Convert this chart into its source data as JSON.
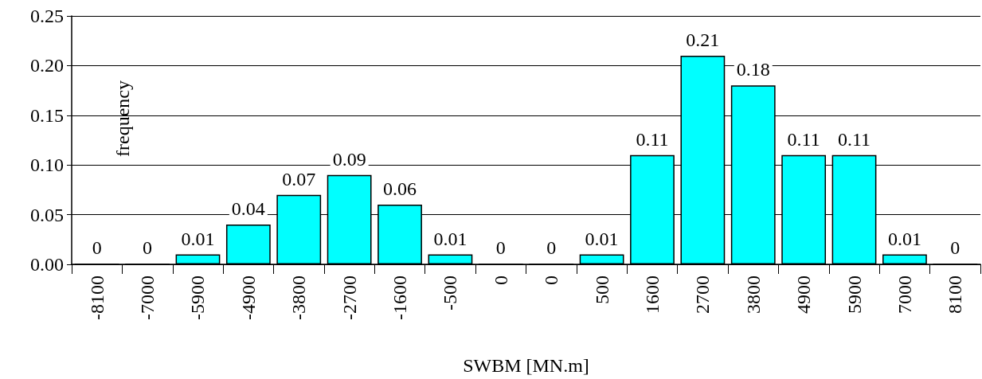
{
  "chart_data": {
    "type": "bar",
    "xlabel": "SWBM [MN.m]",
    "ylabel": "frequency",
    "categories": [
      "-8100",
      "-7000",
      "-5900",
      "-4900",
      "-3800",
      "-2700",
      "-1600",
      "-500",
      "0",
      "0",
      "500",
      "1600",
      "2700",
      "3800",
      "4900",
      "5900",
      "7000",
      "8100"
    ],
    "values": [
      0,
      0,
      0.01,
      0.04,
      0.07,
      0.09,
      0.06,
      0.01,
      0,
      0,
      0.01,
      0.11,
      0.21,
      0.18,
      0.11,
      0.11,
      0.01,
      0
    ],
    "color": "#00ffff",
    "ylim": [
      0,
      0.25
    ],
    "yticks": [
      {
        "value": 0,
        "label": "0.00"
      },
      {
        "value": 0.05,
        "label": "0.05"
      },
      {
        "value": 0.1,
        "label": "0.10"
      },
      {
        "value": 0.15,
        "label": "0.15"
      },
      {
        "value": 0.2,
        "label": "0.20"
      },
      {
        "value": 0.25,
        "label": "0.25"
      }
    ],
    "grid": "y",
    "data_labels": true
  }
}
